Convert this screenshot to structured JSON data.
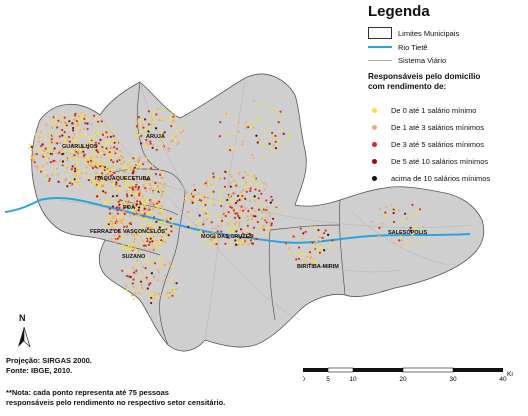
{
  "legend": {
    "title": "Legenda",
    "items": [
      {
        "label": "Limites Municipais",
        "symbol": "box"
      },
      {
        "label": "Rio Tietê",
        "symbol": "line",
        "color": "#29a3e0"
      },
      {
        "label": "Sistema Viário",
        "symbol": "line",
        "color": "#a9a9a9"
      }
    ],
    "income_title_1": "Responsáveis pelo domicílio",
    "income_title_2": "com rendimento de:",
    "classes": [
      {
        "label": "De 0 até 1 salário mínimo",
        "color": "#f2e23a"
      },
      {
        "label": "De 1 até 3 salários mínimos",
        "color": "#f0a875"
      },
      {
        "label": "De 3 até 5 salários mínimos",
        "color": "#e02a18"
      },
      {
        "label": "De 5 até 10 salários mínimos",
        "color": "#8b0d0d"
      },
      {
        "label": "acima de 10 salários mínimos",
        "color": "#111111"
      }
    ]
  },
  "municipalities": [
    {
      "name": "GUARULHOS"
    },
    {
      "name": "ARUJÁ"
    },
    {
      "name": "ITAQUAQUECETUBA"
    },
    {
      "name": "FERRAZ DE VASCONCELOS"
    },
    {
      "name": "POÁ"
    },
    {
      "name": "SUZANO"
    },
    {
      "name": "MOGI DAS CRUZES"
    },
    {
      "name": "BIRITIBA-MIRIM"
    },
    {
      "name": "SALESÓPOLIS"
    }
  ],
  "north_label": "N",
  "projection": "Projeção: SIRGAS 2000.",
  "source": "Fonte: IBGE, 2010.",
  "note_line1": "**Nota: cada ponto representa até 75 pessoas",
  "note_line2": "responsáveis pelo rendimento no respectivo setor censitário.",
  "scale": {
    "ticks": [
      "0",
      "5",
      "10",
      "20",
      "30",
      "40"
    ],
    "unit": "Km"
  },
  "colors": {
    "region_fill": "#cfcfcf",
    "boundary": "#555555",
    "river": "#29a3e0",
    "road": "#b5b5b5"
  }
}
